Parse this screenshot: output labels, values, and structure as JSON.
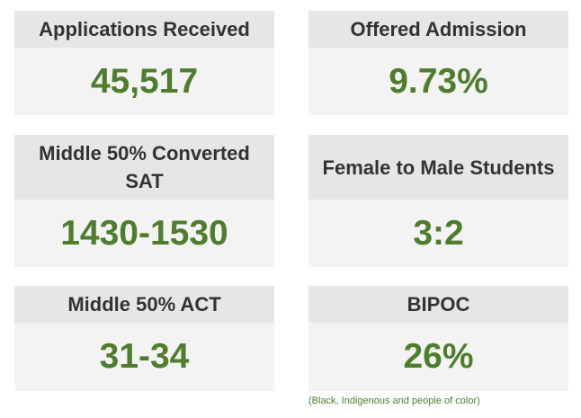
{
  "stats": [
    {
      "label": "Applications Received",
      "value": "45,517"
    },
    {
      "label": "Offered Admission",
      "value": "9.73%"
    },
    {
      "label": "Middle 50% Converted SAT",
      "value": "1430-1530"
    },
    {
      "label": "Female to Male Students",
      "value": "3:2"
    },
    {
      "label": "Middle 50% ACT",
      "value": "31-34"
    },
    {
      "label": "BIPOC",
      "value": "26%"
    }
  ],
  "footnote": "(Black, Indigenous and people of color)",
  "colors": {
    "header_bg": "#e6e6e6",
    "body_bg": "#f3f3f3",
    "value_text": "#4f7d2e",
    "label_text": "#333333"
  }
}
